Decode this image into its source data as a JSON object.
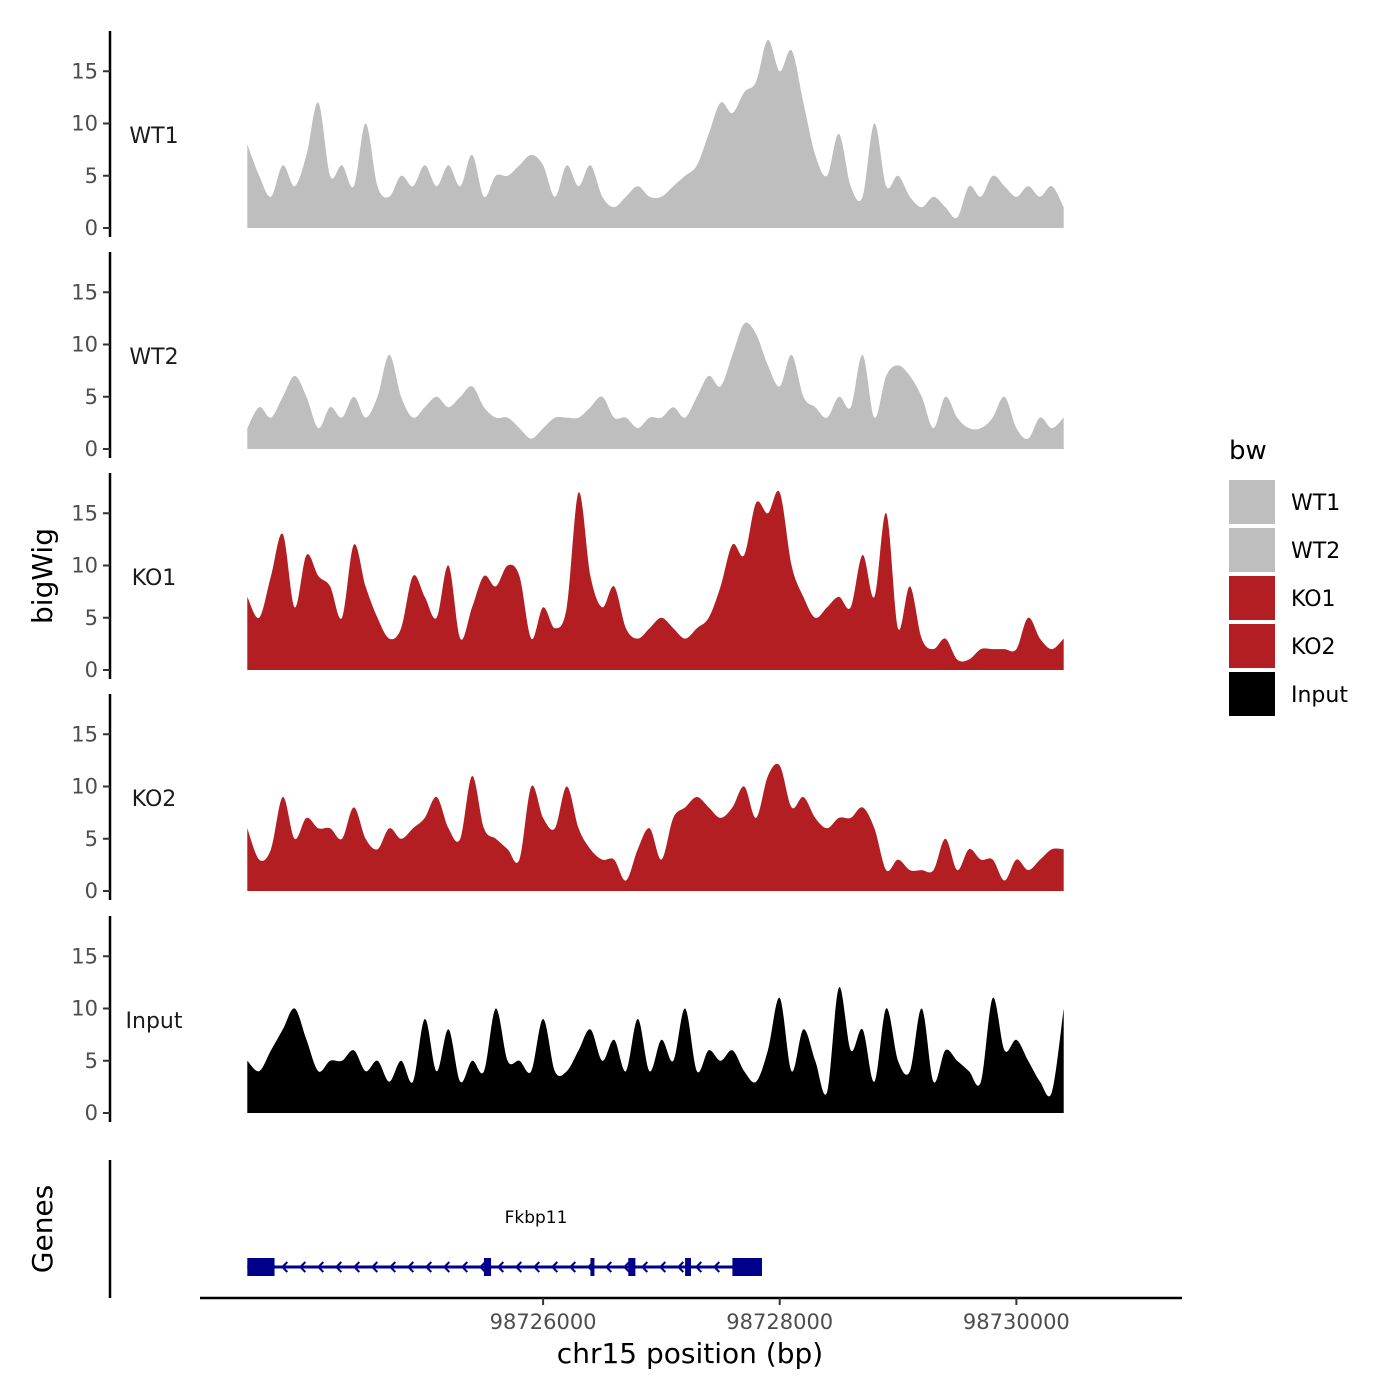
{
  "chart_data": {
    "type": "area",
    "title": "",
    "xlabel": "chr15 position (bp)",
    "ylabel": "bigWig",
    "xlim": [
      98723100,
      98731400
    ],
    "ylim": [
      0,
      19
    ],
    "yticks": [
      0,
      5,
      10,
      15
    ],
    "xticks": [
      98726000,
      98728000,
      98730000
    ],
    "xtick_labels": [
      "98726000",
      "98728000",
      "98730000"
    ],
    "legend": {
      "title": "bw",
      "position": "right",
      "entries": [
        {
          "label": "WT1",
          "color": "#bebebe"
        },
        {
          "label": "WT2",
          "color": "#bebebe"
        },
        {
          "label": "KO1",
          "color": "#b21e21"
        },
        {
          "label": "KO2",
          "color": "#b21e21"
        },
        {
          "label": "Input",
          "color": "#000000"
        }
      ]
    },
    "tracks": [
      {
        "name": "WT1",
        "color": "#bebebe",
        "x": [
          98723500,
          98723600,
          98723700,
          98723800,
          98723900,
          98724000,
          98724100,
          98724200,
          98724300,
          98724400,
          98724500,
          98724600,
          98724700,
          98724800,
          98724900,
          98725000,
          98725100,
          98725200,
          98725300,
          98725400,
          98725500,
          98725600,
          98725700,
          98725800,
          98725900,
          98726000,
          98726100,
          98726200,
          98726300,
          98726400,
          98726500,
          98726600,
          98726700,
          98726800,
          98726900,
          98727000,
          98727100,
          98727200,
          98727300,
          98727400,
          98727500,
          98727600,
          98727700,
          98727800,
          98727900,
          98728000,
          98728100,
          98728200,
          98728300,
          98728400,
          98728500,
          98728600,
          98728700,
          98728800,
          98728900,
          98729000,
          98729100,
          98729200,
          98729300,
          98729400,
          98729500,
          98729600,
          98729700,
          98729800,
          98729900,
          98730000,
          98730100,
          98730200,
          98730300,
          98730400
        ],
        "y": [
          8,
          5,
          3,
          6,
          4,
          7,
          12,
          5,
          6,
          4,
          10,
          4,
          3,
          5,
          4,
          6,
          4,
          6,
          4,
          7,
          3,
          5,
          5,
          6,
          7,
          6,
          3,
          6,
          4,
          6,
          3,
          2,
          3,
          4,
          3,
          3,
          4,
          5,
          6,
          9,
          12,
          11,
          13,
          14,
          18,
          15,
          17,
          12,
          7,
          5,
          9,
          4,
          3,
          10,
          4,
          5,
          3,
          2,
          3,
          2,
          1,
          4,
          3,
          5,
          4,
          3,
          4,
          3,
          4,
          2
        ],
        "max": 18
      },
      {
        "name": "WT2",
        "color": "#bebebe",
        "x": [
          98723500,
          98723600,
          98723700,
          98723800,
          98723900,
          98724000,
          98724100,
          98724200,
          98724300,
          98724400,
          98724500,
          98724600,
          98724700,
          98724800,
          98724900,
          98725000,
          98725100,
          98725200,
          98725300,
          98725400,
          98725500,
          98725600,
          98725700,
          98725800,
          98725900,
          98726000,
          98726100,
          98726200,
          98726300,
          98726400,
          98726500,
          98726600,
          98726700,
          98726800,
          98726900,
          98727000,
          98727100,
          98727200,
          98727300,
          98727400,
          98727500,
          98727600,
          98727700,
          98727800,
          98727900,
          98728000,
          98728100,
          98728200,
          98728300,
          98728400,
          98728500,
          98728600,
          98728700,
          98728800,
          98728900,
          98729000,
          98729100,
          98729200,
          98729300,
          98729400,
          98729500,
          98729600,
          98729700,
          98729800,
          98729900,
          98730000,
          98730100,
          98730200,
          98730300,
          98730400
        ],
        "y": [
          2,
          4,
          3,
          5,
          7,
          5,
          2,
          4,
          3,
          5,
          3,
          5,
          9,
          5,
          3,
          4,
          5,
          4,
          5,
          6,
          4,
          3,
          3,
          2,
          1,
          2,
          3,
          3,
          3,
          4,
          5,
          3,
          3,
          2,
          3,
          3,
          4,
          3,
          5,
          7,
          6,
          9,
          12,
          11,
          8,
          6,
          9,
          5,
          4,
          3,
          5,
          4,
          9,
          3,
          7,
          8,
          7,
          5,
          2,
          5,
          3,
          2,
          2,
          3,
          5,
          2,
          1,
          3,
          2,
          3
        ],
        "max": 12
      },
      {
        "name": "KO1",
        "color": "#b21e21",
        "x": [
          98723500,
          98723600,
          98723700,
          98723800,
          98723900,
          98724000,
          98724100,
          98724200,
          98724300,
          98724400,
          98724500,
          98724600,
          98724700,
          98724800,
          98724900,
          98725000,
          98725100,
          98725200,
          98725300,
          98725400,
          98725500,
          98725600,
          98725700,
          98725800,
          98725900,
          98726000,
          98726100,
          98726200,
          98726300,
          98726400,
          98726500,
          98726600,
          98726700,
          98726800,
          98726900,
          98727000,
          98727100,
          98727200,
          98727300,
          98727400,
          98727500,
          98727600,
          98727700,
          98727800,
          98727900,
          98728000,
          98728100,
          98728200,
          98728300,
          98728400,
          98728500,
          98728600,
          98728700,
          98728800,
          98728900,
          98729000,
          98729100,
          98729200,
          98729300,
          98729400,
          98729500,
          98729600,
          98729700,
          98729800,
          98729900,
          98730000,
          98730100,
          98730200,
          98730300,
          98730400
        ],
        "y": [
          7,
          5,
          9,
          13,
          6,
          11,
          9,
          8,
          5,
          12,
          8,
          5,
          3,
          4,
          9,
          7,
          5,
          10,
          3,
          6,
          9,
          8,
          10,
          9,
          3,
          6,
          4,
          6,
          17,
          9,
          6,
          8,
          4,
          3,
          4,
          5,
          4,
          3,
          4,
          5,
          8,
          12,
          11,
          16,
          15,
          17,
          10,
          7,
          5,
          6,
          7,
          6,
          11,
          7,
          15,
          4,
          8,
          3,
          2,
          3,
          1,
          1,
          2,
          2,
          2,
          2,
          5,
          3,
          2,
          3
        ],
        "max": 18
      },
      {
        "name": "KO2",
        "color": "#b21e21",
        "x": [
          98723500,
          98723600,
          98723700,
          98723800,
          98723900,
          98724000,
          98724100,
          98724200,
          98724300,
          98724400,
          98724500,
          98724600,
          98724700,
          98724800,
          98724900,
          98725000,
          98725100,
          98725200,
          98725300,
          98725400,
          98725500,
          98725600,
          98725700,
          98725800,
          98725900,
          98726000,
          98726100,
          98726200,
          98726300,
          98726400,
          98726500,
          98726600,
          98726700,
          98726800,
          98726900,
          98727000,
          98727100,
          98727200,
          98727300,
          98727400,
          98727500,
          98727600,
          98727700,
          98727800,
          98727900,
          98728000,
          98728100,
          98728200,
          98728300,
          98728400,
          98728500,
          98728600,
          98728700,
          98728800,
          98728900,
          98729000,
          98729100,
          98729200,
          98729300,
          98729400,
          98729500,
          98729600,
          98729700,
          98729800,
          98729900,
          98730000,
          98730100,
          98730200,
          98730300,
          98730400
        ],
        "y": [
          6,
          3,
          4,
          9,
          5,
          7,
          6,
          6,
          5,
          8,
          5,
          4,
          6,
          5,
          6,
          7,
          9,
          6,
          5,
          11,
          6,
          5,
          4,
          3,
          10,
          7,
          6,
          10,
          6,
          4,
          3,
          3,
          1,
          4,
          6,
          3,
          7,
          8,
          9,
          8,
          7,
          8,
          10,
          7,
          11,
          12,
          8,
          9,
          7,
          6,
          7,
          7,
          8,
          6,
          2,
          3,
          2,
          2,
          2,
          5,
          2,
          4,
          3,
          3,
          1,
          3,
          2,
          3,
          4,
          4
        ],
        "max": 13
      },
      {
        "name": "Input",
        "color": "#000000",
        "x": [
          98723500,
          98723600,
          98723700,
          98723800,
          98723900,
          98724000,
          98724100,
          98724200,
          98724300,
          98724400,
          98724500,
          98724600,
          98724700,
          98724800,
          98724900,
          98725000,
          98725100,
          98725200,
          98725300,
          98725400,
          98725500,
          98725600,
          98725700,
          98725800,
          98725900,
          98726000,
          98726100,
          98726200,
          98726300,
          98726400,
          98726500,
          98726600,
          98726700,
          98726800,
          98726900,
          98727000,
          98727100,
          98727200,
          98727300,
          98727400,
          98727500,
          98727600,
          98727700,
          98727800,
          98727900,
          98728000,
          98728100,
          98728200,
          98728300,
          98728400,
          98728500,
          98728600,
          98728700,
          98728800,
          98728900,
          98729000,
          98729100,
          98729200,
          98729300,
          98729400,
          98729500,
          98729600,
          98729700,
          98729800,
          98729900,
          98730000,
          98730100,
          98730200,
          98730300,
          98730400
        ],
        "y": [
          5,
          4,
          6,
          8,
          10,
          7,
          4,
          5,
          5,
          6,
          4,
          5,
          3,
          5,
          3,
          9,
          4,
          8,
          3,
          5,
          4,
          10,
          5,
          5,
          4,
          9,
          4,
          4,
          6,
          8,
          5,
          7,
          4,
          9,
          4,
          7,
          5,
          10,
          4,
          6,
          5,
          6,
          4,
          3,
          6,
          11,
          4,
          8,
          5,
          2,
          12,
          6,
          8,
          3,
          10,
          5,
          4,
          10,
          3,
          6,
          5,
          4,
          3,
          11,
          6,
          7,
          5,
          3,
          2,
          10
        ],
        "max": 13
      }
    ],
    "genes": [
      {
        "name": "Fkbp11",
        "strand": "-",
        "start": 98723500,
        "end": 98727850,
        "color": "#00008b",
        "exons": [
          [
            98723500,
            98723730
          ],
          [
            98725500,
            98725560
          ],
          [
            98726400,
            98726420
          ],
          [
            98726720,
            98726780
          ],
          [
            98727200,
            98727250
          ],
          [
            98727600,
            98727850
          ]
        ]
      }
    ],
    "gene_track_label": "Genes"
  }
}
